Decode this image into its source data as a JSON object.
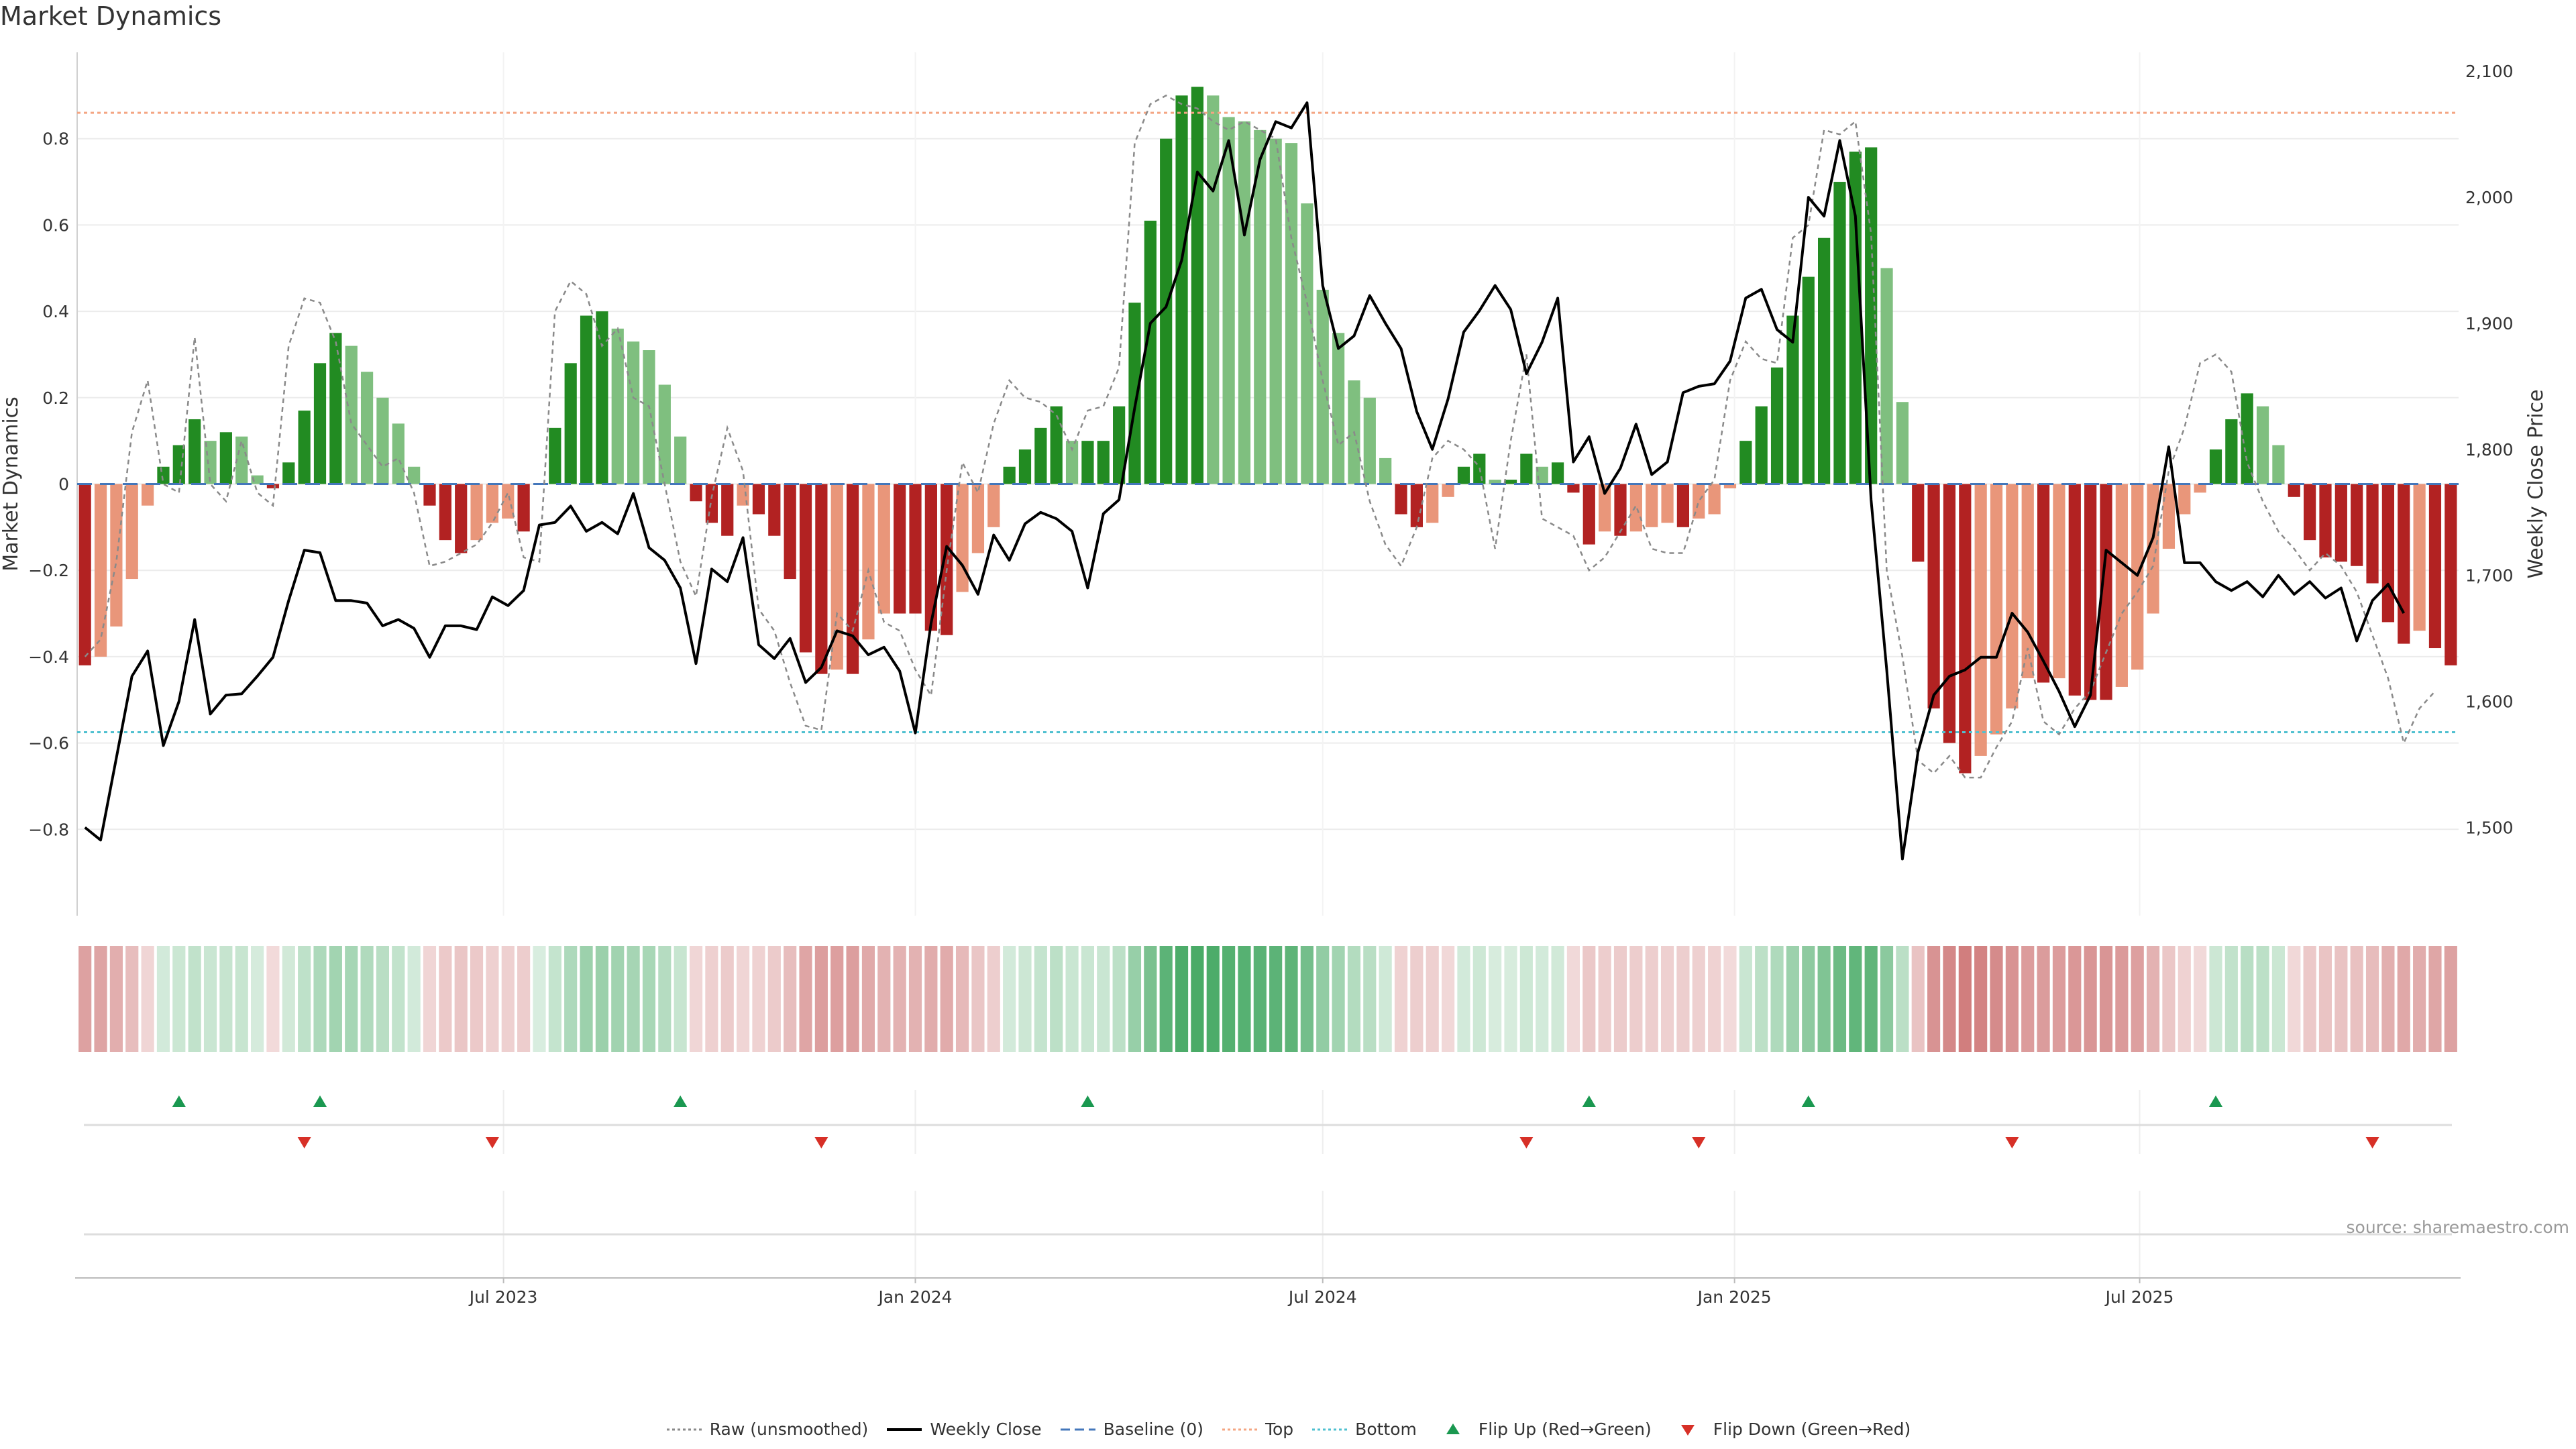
{
  "page": {
    "title": "Market Dynamics",
    "source": "source: sharemaestro.com"
  },
  "colors": {
    "strong_up": "#228b22",
    "weak_up": "#7fbf7f",
    "strong_down": "#b22222",
    "weak_down": "#e9967a",
    "close": "#000000",
    "raw": "#8a8a8a",
    "baseline": "#4477bb",
    "top": "#f4a582",
    "bottom": "#4fc0d0",
    "flip_up": "#1a9850",
    "flip_down": "#d73027"
  },
  "chart_data": {
    "type": "bar",
    "title": "Market Dynamics",
    "ylabel": "Market Dynamics",
    "y2label": "Weekly Close Price",
    "ylim": [
      -1.0,
      1.0
    ],
    "y2lim": [
      1430,
      2115
    ],
    "yticks": [
      -0.8,
      -0.6,
      -0.4,
      -0.2,
      0,
      0.2,
      0.4,
      0.6,
      0.8
    ],
    "ytick_labels": [
      "−0.8",
      "−0.6",
      "−0.4",
      "−0.2",
      "0",
      "0.2",
      "0.4",
      "0.6",
      "0.8"
    ],
    "y2ticks": [
      1500,
      1600,
      1700,
      1800,
      1900,
      2000,
      2100
    ],
    "y2tick_labels": [
      "1,500",
      "1,600",
      "1,700",
      "1,800",
      "1,900",
      "2,000",
      "2,100"
    ],
    "x_start": "2022-12-26",
    "x_end": "2025-11-17",
    "xticks": [
      "2023-07-01",
      "2024-01-01",
      "2024-07-01",
      "2025-01-01",
      "2025-07-01"
    ],
    "xtick_labels": [
      "Jul 2023",
      "Jan 2024",
      "Jul 2024",
      "Jan 2025",
      "Jul 2025"
    ],
    "top_level": 0.86,
    "bottom_level": -0.575,
    "baseline": 0,
    "grid": true,
    "legend_position": "bottom-center",
    "legend": [
      "Raw (unsmoothed)",
      "Weekly Close",
      "Baseline (0)",
      "Top",
      "Bottom",
      "Flip Up (Red→Green)",
      "Flip Down (Green→Red)"
    ],
    "series": [
      {
        "name": "Market Dynamics",
        "values": [
          -0.42,
          -0.4,
          -0.33,
          -0.22,
          -0.05,
          0.04,
          0.09,
          0.15,
          0.1,
          0.12,
          0.11,
          0.02,
          -0.01,
          0.05,
          0.17,
          0.28,
          0.35,
          0.32,
          0.26,
          0.2,
          0.14,
          0.04,
          -0.05,
          -0.13,
          -0.16,
          -0.13,
          -0.09,
          -0.08,
          -0.11,
          0.0,
          0.13,
          0.28,
          0.39,
          0.4,
          0.36,
          0.33,
          0.31,
          0.23,
          0.11,
          -0.04,
          -0.09,
          -0.12,
          -0.05,
          -0.07,
          -0.12,
          -0.22,
          -0.39,
          -0.44,
          -0.43,
          -0.44,
          -0.36,
          -0.3,
          -0.3,
          -0.3,
          -0.34,
          -0.35,
          -0.25,
          -0.16,
          -0.1,
          0.04,
          0.08,
          0.13,
          0.18,
          0.1,
          0.1,
          0.1,
          0.18,
          0.42,
          0.61,
          0.8,
          0.9,
          0.92,
          0.9,
          0.85,
          0.84,
          0.82,
          0.8,
          0.79,
          0.65,
          0.45,
          0.35,
          0.24,
          0.2,
          0.06,
          -0.07,
          -0.1,
          -0.09,
          -0.03,
          0.04,
          0.07,
          0.01,
          0.01,
          0.07,
          0.04,
          0.05,
          -0.02,
          -0.14,
          -0.11,
          -0.12,
          -0.11,
          -0.1,
          -0.09,
          -0.1,
          -0.08,
          -0.07,
          -0.01,
          0.1,
          0.18,
          0.27,
          0.39,
          0.48,
          0.57,
          0.7,
          0.77,
          0.78,
          0.5,
          0.19,
          -0.18,
          -0.52,
          -0.6,
          -0.67,
          -0.63,
          -0.58,
          -0.52,
          -0.45,
          -0.46,
          -0.45,
          -0.49,
          -0.5,
          -0.5,
          -0.47,
          -0.43,
          -0.3,
          -0.15,
          -0.07,
          -0.02,
          0.08,
          0.15,
          0.21,
          0.18,
          0.09,
          -0.03,
          -0.13,
          -0.17,
          -0.18,
          -0.19,
          -0.23,
          -0.32,
          -0.37,
          -0.34,
          -0.38,
          -0.42
        ]
      },
      {
        "name": "Raw (unsmoothed)",
        "values": [
          -0.4,
          -0.36,
          -0.18,
          0.12,
          0.24,
          0.0,
          -0.02,
          0.34,
          0.0,
          -0.04,
          0.1,
          -0.02,
          -0.05,
          0.32,
          0.43,
          0.42,
          0.33,
          0.14,
          0.09,
          0.04,
          0.06,
          -0.02,
          -0.19,
          -0.18,
          -0.16,
          -0.14,
          -0.09,
          -0.02,
          -0.17,
          -0.18,
          0.4,
          0.47,
          0.44,
          0.32,
          0.36,
          0.2,
          0.18,
          0.0,
          -0.18,
          -0.26,
          -0.03,
          0.13,
          0.03,
          -0.29,
          -0.34,
          -0.46,
          -0.56,
          -0.57,
          -0.3,
          -0.34,
          -0.2,
          -0.32,
          -0.34,
          -0.43,
          -0.49,
          -0.2,
          0.05,
          -0.02,
          0.14,
          0.24,
          0.2,
          0.19,
          0.16,
          0.08,
          0.17,
          0.18,
          0.27,
          0.79,
          0.88,
          0.9,
          0.88,
          0.87,
          0.84,
          0.82,
          0.84,
          0.82,
          0.8,
          0.57,
          0.42,
          0.24,
          0.09,
          0.12,
          -0.04,
          -0.14,
          -0.19,
          -0.1,
          0.06,
          0.1,
          0.08,
          0.04,
          -0.15,
          0.1,
          0.3,
          -0.08,
          -0.1,
          -0.12,
          -0.2,
          -0.17,
          -0.11,
          -0.05,
          -0.15,
          -0.16,
          -0.16,
          -0.04,
          0.01,
          0.24,
          0.33,
          0.29,
          0.28,
          0.57,
          0.6,
          0.82,
          0.81,
          0.84,
          0.58,
          -0.2,
          -0.4,
          -0.64,
          -0.67,
          -0.63,
          -0.68,
          -0.68,
          -0.61,
          -0.55,
          -0.38,
          -0.55,
          -0.58,
          -0.52,
          -0.48,
          -0.39,
          -0.3,
          -0.25,
          -0.19,
          0.03,
          0.13,
          0.28,
          0.3,
          0.26,
          0.05,
          -0.04,
          -0.11,
          -0.15,
          -0.2,
          -0.16,
          -0.19,
          -0.25,
          -0.35,
          -0.45,
          -0.6,
          -0.52,
          -0.48
        ]
      },
      {
        "name": "Weekly Close",
        "values": [
          1500,
          1490,
          1555,
          1620,
          1640,
          1565,
          1600,
          1665,
          1590,
          1605,
          1606,
          1620,
          1635,
          1680,
          1720,
          1718,
          1680,
          1680,
          1678,
          1660,
          1665,
          1658,
          1635,
          1660,
          1660,
          1657,
          1683,
          1676,
          1688,
          1740,
          1742,
          1755,
          1735,
          1742,
          1733,
          1765,
          1722,
          1712,
          1690,
          1630,
          1705,
          1695,
          1730,
          1645,
          1634,
          1650,
          1615,
          1627,
          1656,
          1652,
          1637,
          1643,
          1624,
          1575,
          1662,
          1723,
          1708,
          1685,
          1732,
          1712,
          1741,
          1750,
          1745,
          1735,
          1690,
          1749,
          1760,
          1833,
          1900,
          1913,
          1950,
          2020,
          2005,
          2045,
          1970,
          2030,
          2060,
          2055,
          2075,
          1930,
          1880,
          1890,
          1922,
          1900,
          1880,
          1830,
          1800,
          1840,
          1893,
          1910,
          1930,
          1911,
          1860,
          1885,
          1920,
          1790,
          1810,
          1765,
          1785,
          1820,
          1780,
          1790,
          1845,
          1850,
          1852,
          1870,
          1920,
          1927,
          1895,
          1885,
          2000,
          1985,
          2045,
          1985,
          1760,
          1625,
          1475,
          1560,
          1605,
          1620,
          1625,
          1635,
          1635,
          1670,
          1655,
          1632,
          1608,
          1580,
          1605,
          1720,
          1710,
          1700,
          1730,
          1802,
          1710,
          1710,
          1695,
          1688,
          1695,
          1683,
          1700,
          1685,
          1695,
          1682,
          1690,
          1648,
          1680,
          1693,
          1670
        ]
      }
    ],
    "stripe": [
      -0.42,
      -0.4,
      -0.33,
      -0.22,
      -0.05,
      0.04,
      0.09,
      0.15,
      0.1,
      0.12,
      0.11,
      0.02,
      -0.01,
      0.05,
      0.17,
      0.28,
      0.35,
      0.32,
      0.26,
      0.2,
      0.14,
      0.04,
      -0.05,
      -0.13,
      -0.16,
      -0.13,
      -0.09,
      -0.08,
      -0.11,
      0.0,
      0.13,
      0.28,
      0.39,
      0.4,
      0.36,
      0.33,
      0.31,
      0.23,
      0.11,
      -0.04,
      -0.09,
      -0.12,
      -0.05,
      -0.07,
      -0.12,
      -0.22,
      -0.39,
      -0.44,
      -0.43,
      -0.44,
      -0.36,
      -0.3,
      -0.3,
      -0.3,
      -0.34,
      -0.35,
      -0.25,
      -0.16,
      -0.1,
      0.04,
      0.08,
      0.13,
      0.18,
      0.1,
      0.1,
      0.1,
      0.18,
      0.42,
      0.61,
      0.8,
      0.9,
      0.92,
      0.9,
      0.85,
      0.84,
      0.82,
      0.8,
      0.79,
      0.65,
      0.45,
      0.35,
      0.24,
      0.2,
      0.06,
      -0.07,
      -0.1,
      -0.09,
      -0.03,
      0.04,
      0.07,
      0.01,
      0.01,
      0.07,
      0.04,
      0.05,
      -0.02,
      -0.14,
      -0.11,
      -0.12,
      -0.11,
      -0.1,
      -0.09,
      -0.1,
      -0.08,
      -0.07,
      -0.01,
      0.1,
      0.18,
      0.27,
      0.39,
      0.48,
      0.57,
      0.7,
      0.77,
      0.78,
      0.5,
      0.19,
      -0.18,
      -0.52,
      -0.6,
      -0.67,
      -0.63,
      -0.58,
      -0.52,
      -0.45,
      -0.46,
      -0.45,
      -0.49,
      -0.5,
      -0.5,
      -0.47,
      -0.43,
      -0.3,
      -0.15,
      -0.07,
      -0.02,
      0.08,
      0.15,
      0.21,
      0.18,
      0.09,
      -0.03,
      -0.13,
      -0.17,
      -0.18,
      -0.19,
      -0.23,
      -0.32,
      -0.37,
      -0.34,
      -0.38,
      -0.42
    ],
    "flips_up": [
      "2023-02-06",
      "2023-04-10",
      "2023-09-18",
      "2024-03-18",
      "2024-10-28",
      "2025-02-03",
      "2025-08-04"
    ],
    "flips_down": [
      "2023-04-03",
      "2023-06-26",
      "2023-11-20",
      "2024-09-30",
      "2024-12-16",
      "2025-05-05",
      "2025-10-13"
    ]
  },
  "legend_items": [
    {
      "name": "legend-raw",
      "label": "Raw (unsmoothed)",
      "kind": "dotted-line",
      "color": "#8a8a8a"
    },
    {
      "name": "legend-weekly-close",
      "label": "Weekly Close",
      "kind": "solid-line",
      "color": "#000000"
    },
    {
      "name": "legend-baseline",
      "label": "Baseline (0)",
      "kind": "dashed-line",
      "color": "#4477bb"
    },
    {
      "name": "legend-top",
      "label": "Top",
      "kind": "dotted-line",
      "color": "#f4a582"
    },
    {
      "name": "legend-bottom",
      "label": "Bottom",
      "kind": "dotted-line",
      "color": "#4fc0d0"
    },
    {
      "name": "legend-flip-up",
      "label": "Flip Up (Red→Green)",
      "kind": "tri-up",
      "color": "#1a9850"
    },
    {
      "name": "legend-flip-down",
      "label": "Flip Down (Green→Red)",
      "kind": "tri-down",
      "color": "#d73027"
    }
  ]
}
